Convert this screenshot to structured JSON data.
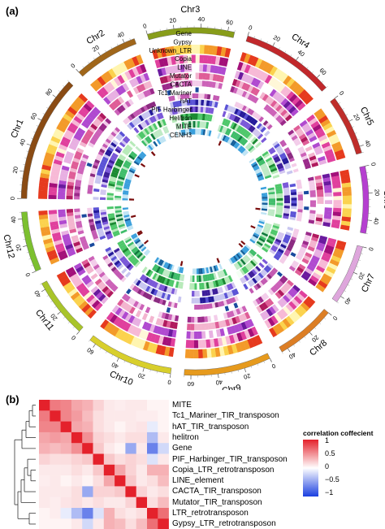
{
  "panel_a": {
    "label": "(a)",
    "chromosomes": [
      {
        "name": "Chr1",
        "length": 95,
        "ticks": [
          "0",
          "20",
          "40",
          "60",
          "80"
        ],
        "color": "#8a4b14"
      },
      {
        "name": "Chr2",
        "length": 48,
        "ticks": [
          "0",
          "20",
          "40"
        ],
        "color": "#a0661a"
      },
      {
        "name": "Chr3",
        "length": 65,
        "ticks": [
          "0",
          "20",
          "40",
          "60"
        ],
        "color": "#889d1a"
      },
      {
        "name": "Chr4",
        "length": 70,
        "ticks": [
          "0",
          "20",
          "40",
          "60"
        ],
        "color": "#c1282b"
      },
      {
        "name": "Chr5",
        "length": 45,
        "ticks": [
          "0",
          "20",
          "40"
        ],
        "color": "#bf2d2a"
      },
      {
        "name": "Chr6",
        "length": 50,
        "ticks": [
          "0",
          "20",
          "40"
        ],
        "color": "#b53fd0"
      },
      {
        "name": "Chr7",
        "length": 45,
        "ticks": [
          "0",
          "20",
          "40"
        ],
        "color": "#dea6dc"
      },
      {
        "name": "Chr8",
        "length": 45,
        "ticks": [
          "0",
          "20",
          "40"
        ],
        "color": "#dc7e25"
      },
      {
        "name": "Chr9",
        "length": 65,
        "ticks": [
          "0",
          "20",
          "40",
          "60"
        ],
        "color": "#e69a1d"
      },
      {
        "name": "Chr10",
        "length": 65,
        "ticks": [
          "0",
          "20",
          "40",
          "60"
        ],
        "color": "#d8cf2c"
      },
      {
        "name": "Chr11",
        "length": 45,
        "ticks": [
          "0",
          "20",
          "40"
        ],
        "color": "#a9c42a"
      },
      {
        "name": "Chr12",
        "length": 45,
        "ticks": [
          "0",
          "20",
          "40"
        ],
        "color": "#7cc02f"
      }
    ],
    "tracks": [
      {
        "name": "Gene",
        "palette": [
          "#fff5b0",
          "#fbd24e",
          "#f39a2a",
          "#e63a1e"
        ]
      },
      {
        "name": "Gypsy",
        "palette": [
          "#fff7d8",
          "#f7b9d6",
          "#e0409d",
          "#a3107a"
        ]
      },
      {
        "name": "Unknown_LTR",
        "palette": [
          "#ffffff",
          "#e8b0e2",
          "#b04ad0",
          "#6a1a9e"
        ]
      },
      {
        "name": "Copia",
        "palette": [
          "#ffffff",
          "#f3b5cf",
          "#df5d97",
          "#b01a5e"
        ]
      },
      {
        "name": "LINE",
        "palette": [
          "#ffffff",
          "#f3cdea",
          "#cc62b8",
          "#9b2a8a"
        ]
      },
      {
        "name": "Mutator",
        "palette": [
          "#ffffff",
          "#ffffff",
          "#3a7fd0",
          "#1a4a9e"
        ]
      },
      {
        "name": "CACTA",
        "palette": [
          "#ffffff",
          "#f4cde8",
          "#c35ab2",
          "#8a2a80"
        ]
      },
      {
        "name": "Tc1 Mariner",
        "palette": [
          "#ffffff",
          "#c8c6f0",
          "#5b53d6",
          "#241a9a"
        ]
      },
      {
        "name": "hAT",
        "palette": [
          "#ffffff",
          "#d3c7f0",
          "#7a58d8",
          "#3d1e9a"
        ]
      },
      {
        "name": "PIF Harbinger",
        "palette": [
          "#f4fff4",
          "#b7eab9",
          "#4ec76a",
          "#1b8a32"
        ]
      },
      {
        "name": "Helitron",
        "palette": [
          "#ffffff",
          "#bfeac6",
          "#3fbd6a",
          "#0f7a3c"
        ]
      },
      {
        "name": "MITE",
        "palette": [
          "#ffffff",
          "#bfe4f4",
          "#3a9fdc",
          "#155f9a"
        ]
      },
      {
        "name": "CENH3",
        "palette": [
          "#ffffff",
          "#ffffff",
          "#b22020",
          "#7a0d0d"
        ]
      }
    ]
  },
  "panel_b": {
    "label": "(b)",
    "row_labels": [
      "MITE",
      "Tc1_Mariner_TIR_transposon",
      "hAT_TIR_transposon",
      "helitron",
      "Gene",
      "PIF_Harbinger_TIR_transposon",
      "Copia_LTR_retrotransposon",
      "LINE_element",
      "CACTA_TIR_transposon",
      "Mutator_TIR_transposon",
      "LTR_retrotransposon",
      "Gypsy_LTR_retrotransposon"
    ],
    "legend": {
      "title": "correlation coffecient",
      "ticks": [
        "1",
        "0.5",
        "0",
        "−0.5",
        "−1"
      ],
      "colors": {
        "high": "#e4212b",
        "mid": "#ffffff",
        "low": "#1a3fe0"
      }
    },
    "matrix": [
      [
        1,
        0.6,
        0.55,
        0.4,
        0.35,
        0.2,
        0.1,
        0.08,
        0.1,
        0.1,
        0.05,
        0.05
      ],
      [
        0.6,
        1,
        0.55,
        0.45,
        0.3,
        0.15,
        0.1,
        0.1,
        0.1,
        0.08,
        0.08,
        0.05
      ],
      [
        0.55,
        0.55,
        1,
        0.4,
        0.35,
        0.15,
        0.1,
        0.05,
        0.1,
        0.12,
        -0.1,
        0.05
      ],
      [
        0.4,
        0.45,
        0.4,
        1,
        0.5,
        0.2,
        0.15,
        0.1,
        0.15,
        0.15,
        -0.35,
        0.1
      ],
      [
        0.35,
        0.3,
        0.35,
        0.5,
        1,
        0.25,
        0.1,
        0.05,
        -0.45,
        0.1,
        -0.65,
        -0.2
      ],
      [
        0.2,
        0.15,
        0.15,
        0.2,
        0.25,
        1,
        0.25,
        0.15,
        0.2,
        0.15,
        -0.15,
        0.1
      ],
      [
        0.1,
        0.1,
        0.1,
        0.15,
        0.1,
        0.25,
        1,
        0.4,
        0.2,
        0.1,
        0.35,
        0.35
      ],
      [
        0.08,
        0.1,
        0.05,
        0.1,
        0.05,
        0.15,
        0.4,
        1,
        0.25,
        0.1,
        0.15,
        0.3
      ],
      [
        0.1,
        0.1,
        0.1,
        0.15,
        -0.45,
        0.2,
        0.2,
        0.25,
        1,
        0.2,
        0.1,
        0.15
      ],
      [
        0.1,
        0.08,
        0.12,
        0.15,
        0.1,
        0.15,
        0.1,
        0.1,
        0.2,
        1,
        0.15,
        0.3
      ],
      [
        0.05,
        0.08,
        -0.1,
        -0.35,
        -0.65,
        -0.15,
        0.35,
        0.15,
        0.1,
        0.15,
        1,
        0.65
      ],
      [
        0.05,
        0.05,
        0.05,
        0.1,
        -0.2,
        0.1,
        0.35,
        0.3,
        0.15,
        0.3,
        0.65,
        1
      ]
    ]
  }
}
